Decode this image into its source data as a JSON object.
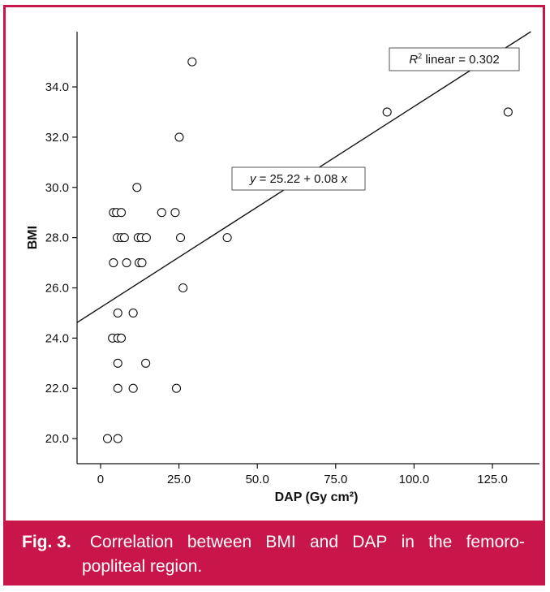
{
  "chart_data": {
    "type": "scatter",
    "xlabel": "DAP (Gy cm²)",
    "ylabel": "BMI",
    "xlim": [
      -7.5,
      140
    ],
    "ylim": [
      19,
      36.2
    ],
    "xticks": [
      0,
      25,
      50,
      75,
      100,
      125
    ],
    "xtick_labels": [
      "0",
      "25.0",
      "50.0",
      "75.0",
      "100.0",
      "125.0"
    ],
    "yticks": [
      20,
      22,
      24,
      26,
      28,
      30,
      32,
      34
    ],
    "ytick_labels": [
      "20.0",
      "22.0",
      "24.0",
      "26.0",
      "28.0",
      "30.0",
      "32.0",
      "34.0"
    ],
    "grid": false,
    "points": [
      {
        "x": 2.2,
        "y": 20
      },
      {
        "x": 5.5,
        "y": 20
      },
      {
        "x": 5.5,
        "y": 22
      },
      {
        "x": 10.4,
        "y": 22
      },
      {
        "x": 24.2,
        "y": 22
      },
      {
        "x": 5.5,
        "y": 23
      },
      {
        "x": 14.4,
        "y": 23
      },
      {
        "x": 3.8,
        "y": 24
      },
      {
        "x": 5.5,
        "y": 24
      },
      {
        "x": 6.6,
        "y": 24
      },
      {
        "x": 5.5,
        "y": 25
      },
      {
        "x": 10.4,
        "y": 25
      },
      {
        "x": 26.3,
        "y": 26
      },
      {
        "x": 4.1,
        "y": 27
      },
      {
        "x": 8.3,
        "y": 27
      },
      {
        "x": 12.3,
        "y": 27
      },
      {
        "x": 13.2,
        "y": 27
      },
      {
        "x": 5.3,
        "y": 28
      },
      {
        "x": 6.6,
        "y": 28
      },
      {
        "x": 7.6,
        "y": 28
      },
      {
        "x": 12.0,
        "y": 28
      },
      {
        "x": 13.0,
        "y": 28
      },
      {
        "x": 14.6,
        "y": 28
      },
      {
        "x": 25.5,
        "y": 28
      },
      {
        "x": 40.4,
        "y": 28
      },
      {
        "x": 4.1,
        "y": 29
      },
      {
        "x": 5.1,
        "y": 29
      },
      {
        "x": 6.6,
        "y": 29
      },
      {
        "x": 19.5,
        "y": 29
      },
      {
        "x": 23.8,
        "y": 29
      },
      {
        "x": 11.6,
        "y": 30
      },
      {
        "x": 25.1,
        "y": 32
      },
      {
        "x": 91.4,
        "y": 33
      },
      {
        "x": 130.0,
        "y": 33
      },
      {
        "x": 29.2,
        "y": 35
      }
    ],
    "fit_line": {
      "intercept": 25.22,
      "slope": 0.08
    },
    "annotations": {
      "r2_var": "R",
      "r2_sup": "2",
      "r2_rest": " linear = 0.302",
      "eq_y": "y",
      "eq_mid": " = 25.22 + 0.08 ",
      "eq_x": "x"
    }
  },
  "caption": {
    "fig_label": "Fig. 3.",
    "line1_words": [
      "Correlation",
      "between",
      "BMI",
      "and",
      "DAP",
      "in",
      "the",
      "femoro-"
    ],
    "line2": "popliteal region."
  },
  "colors": {
    "accent": "#c8154a",
    "ink": "#111111",
    "background": "#ffffff"
  }
}
